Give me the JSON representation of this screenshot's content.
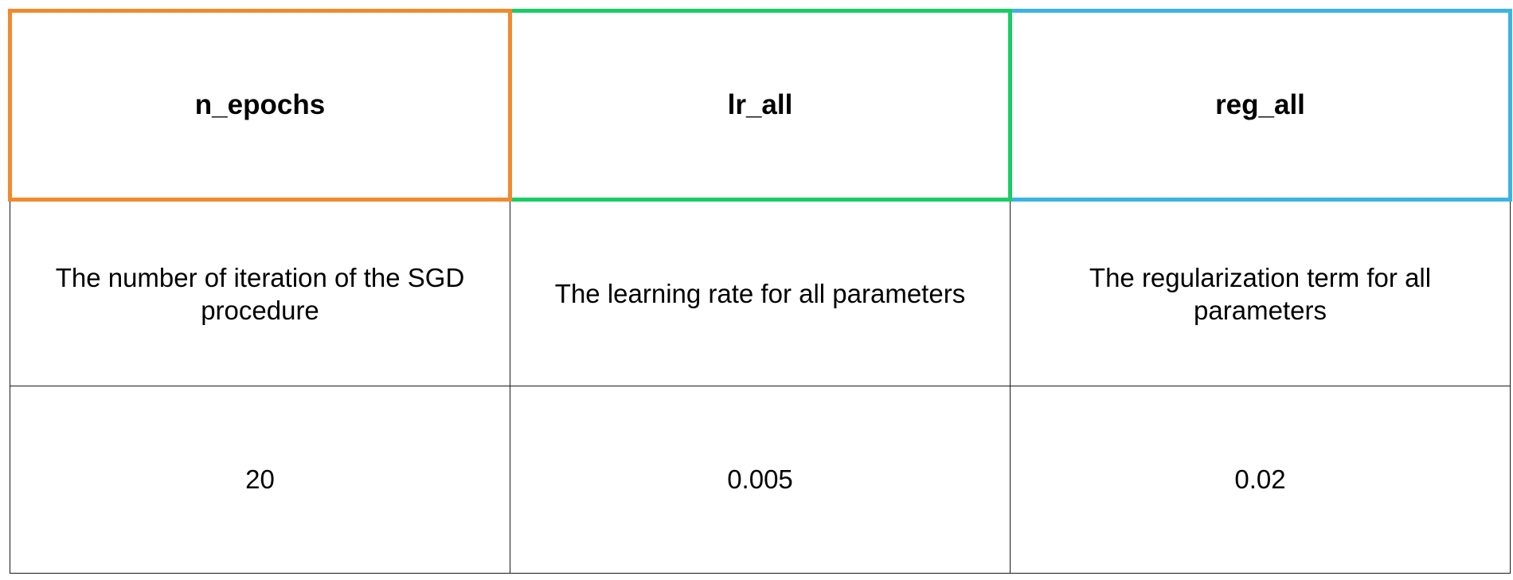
{
  "table": {
    "columns": [
      {
        "name": "n_epochs",
        "description": "The number of iteration of the SGD procedure",
        "default_value": "20",
        "border_color": "#f08a2c"
      },
      {
        "name": "lr_all",
        "description": "The learning rate for all parameters",
        "default_value": "0.005",
        "border_color": "#19cd65"
      },
      {
        "name": "reg_all",
        "description": "The regularization term for all parameters",
        "default_value": "0.02",
        "border_color": "#3bb3e3"
      }
    ]
  }
}
